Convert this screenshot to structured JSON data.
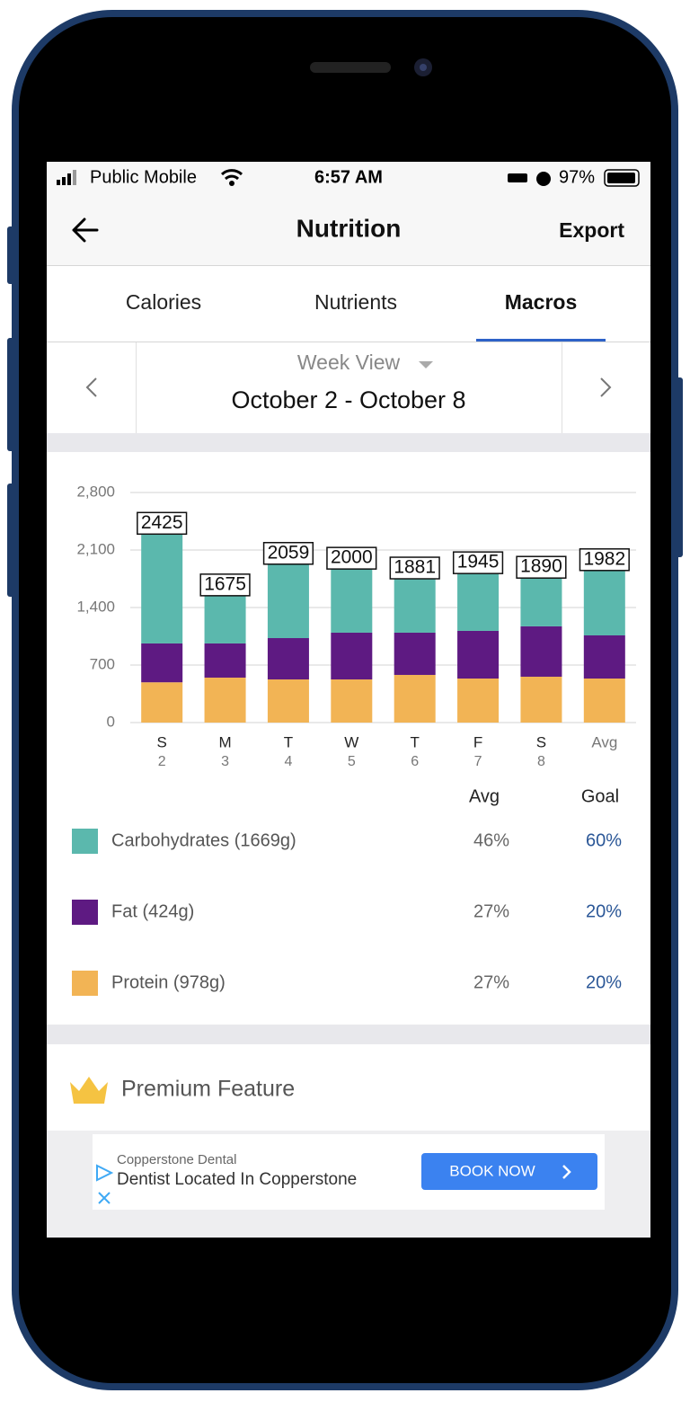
{
  "status_bar": {
    "carrier": "Public Mobile",
    "time": "6:57 AM",
    "battery": "97%"
  },
  "header": {
    "title": "Nutrition",
    "action": "Export"
  },
  "tabs": [
    "Calories",
    "Nutrients",
    "Macros"
  ],
  "date_selector": {
    "view": "Week View",
    "range": "October 2 - October 8"
  },
  "chart_data": {
    "type": "bar",
    "stacked": true,
    "categories": [
      "S",
      "M",
      "T",
      "W",
      "T",
      "F",
      "S",
      "Avg"
    ],
    "sublabels": [
      "2",
      "3",
      "4",
      "5",
      "6",
      "7",
      "8",
      null
    ],
    "series": [
      {
        "name": "Carbohydrates (1669g)",
        "color": "#5bb8ad",
        "values": [
          1462,
          712,
          1031,
          906,
          787,
          829,
          719,
          921
        ],
        "avg": "46%",
        "goal": "60%"
      },
      {
        "name": "Fat (424g)",
        "color": "#5e1a82",
        "values": [
          473,
          416,
          503,
          569,
          514,
          580,
          613,
          525
        ],
        "avg": "27%",
        "goal": "20%"
      },
      {
        "name": "Protein (978g)",
        "color": "#f2b455",
        "values": [
          490,
          547,
          525,
          525,
          580,
          536,
          558,
          536
        ],
        "avg": "27%",
        "goal": "20%"
      }
    ],
    "totals": [
      2425,
      1675,
      2059,
      2000,
      1881,
      1945,
      1890,
      1982
    ],
    "ylim": [
      0,
      2800
    ],
    "yticks": [
      0,
      700,
      {
        "value": 1400,
        "label": "1,400"
      },
      {
        "value": 2100,
        "label": "2,100"
      },
      {
        "value": 2800,
        "label": "2,800"
      }
    ],
    "grid": true,
    "table_headers": [
      "Avg",
      "Goal"
    ]
  },
  "premium": "Premium Feature",
  "ad": {
    "advertiser": "Copperstone Dental",
    "headline": "Dentist Located In Copperstone",
    "button": "BOOK NOW"
  }
}
